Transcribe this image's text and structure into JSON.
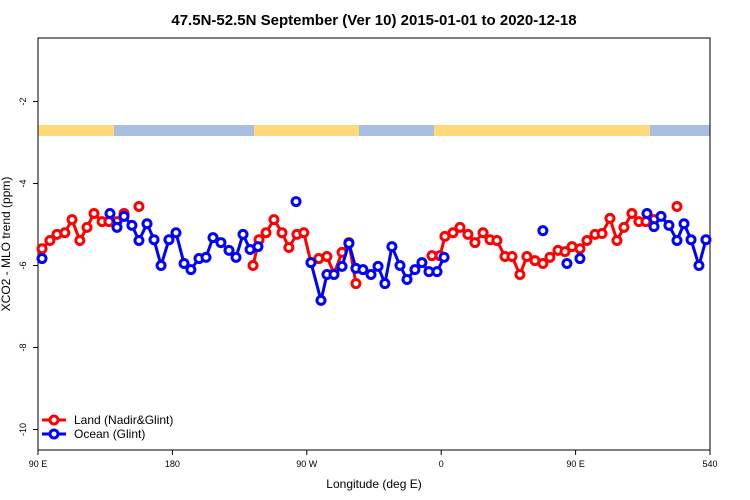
{
  "chart_data": {
    "type": "line",
    "title": "47.5N-52.5N September (Ver 10)   2015-01-01 to 2020-12-18",
    "x_label": "Longitude (deg E)",
    "y_label": "XCO2 - MLO trend (ppm)",
    "xlim": [
      90,
      540
    ],
    "ylim": [
      -10.5,
      -0.45
    ],
    "xticks": [
      {
        "value": 90,
        "label": "90 E"
      },
      180,
      {
        "value": 270,
        "label": "90 W"
      },
      {
        "value": 360,
        "label": "0"
      },
      {
        "value": 450,
        "label": "90 E"
      },
      540
    ],
    "yticks": [
      -2,
      -4,
      -6,
      -8,
      -10
    ],
    "legend": "bottom-left",
    "series": [
      {
        "name": "Land (Nadir&Glint)",
        "color": "#ff0000",
        "x": [
          92.7,
          98,
          102.7,
          108,
          112.8,
          118,
          122.8,
          127.5,
          132.9,
          137.5,
          142.9,
          147.6,
          null,
          157.6,
          null,
          234,
          238,
          242.7,
          248,
          253.4,
          258,
          263.4,
          268,
          272.8,
          278,
          283.5,
          288.2,
          293.6,
          298.2,
          302.9,
          null,
          353.8,
          359.2,
          362.5,
          367.9,
          372.6,
          377.9,
          382.6,
          388,
          392.7,
          397.3,
          402.7,
          407.4,
          412.7,
          417.4,
          422.8,
          428.1,
          432.8,
          438.2,
          442.9,
          447.6,
          452.9,
          457.6,
          463,
          467.7,
          473,
          477.7,
          482.4,
          487.7,
          492.4,
          497.1,
          502.5,
          null,
          517.9
        ],
        "values": [
          -5.59,
          -5.39,
          -5.24,
          -5.2,
          -4.88,
          -5.39,
          -5.07,
          -4.73,
          -4.93,
          -4.93,
          -4.93,
          -4.73,
          null,
          -4.56,
          null,
          -6.0,
          -5.37,
          -5.2,
          -4.88,
          -5.2,
          -5.56,
          -5.24,
          -5.2,
          -5.93,
          -5.83,
          -5.78,
          -6.2,
          -5.68,
          -5.44,
          -6.44,
          null,
          -5.76,
          -5.76,
          -5.29,
          -5.2,
          -5.07,
          -5.24,
          -5.44,
          -5.2,
          -5.37,
          -5.39,
          -5.78,
          -5.78,
          -6.22,
          -5.78,
          -5.88,
          -5.95,
          -5.8,
          -5.63,
          -5.66,
          -5.54,
          -5.59,
          -5.39,
          -5.24,
          -5.22,
          -4.85,
          -5.39,
          -5.07,
          -4.73,
          -4.93,
          -4.93,
          -4.88,
          null,
          -4.56
        ]
      },
      {
        "name": "Ocean (Glint)",
        "color": "#0000ff",
        "x": [
          92.7,
          null,
          138.2,
          142.9,
          147.6,
          152.9,
          157.6,
          163,
          167.7,
          172.4,
          177.7,
          182.4,
          187.8,
          192.4,
          197.8,
          202.5,
          207.2,
          212.5,
          217.9,
          222.6,
          227.3,
          232,
          237.3,
          null,
          262.8,
          null,
          272.8,
          279.5,
          283.5,
          288.2,
          293.6,
          298.2,
          302.9,
          307.6,
          313,
          317.7,
          322.3,
          327,
          332.4,
          337.1,
          342.4,
          347.1,
          351.8,
          357.2,
          361.9,
          null,
          428.1,
          null,
          444.2,
          null,
          452.9,
          null,
          497.8,
          502.5,
          507.2,
          512.5,
          517.9,
          522.6,
          527.3,
          532.6,
          537.3
        ],
        "values": [
          -5.83,
          null,
          -4.73,
          -5.07,
          -4.8,
          -5.02,
          -5.39,
          -4.98,
          -5.37,
          -6.0,
          -5.37,
          -5.2,
          -5.95,
          -6.1,
          -5.83,
          -5.8,
          -5.32,
          -5.44,
          -5.63,
          -5.8,
          -5.24,
          -5.61,
          -5.54,
          null,
          -4.44,
          null,
          -5.93,
          -6.85,
          -6.22,
          -6.22,
          -6.02,
          -5.46,
          -6.07,
          -6.1,
          -6.22,
          -6.02,
          -6.44,
          -5.54,
          -6.0,
          -6.34,
          -6.1,
          -5.93,
          -6.15,
          -6.15,
          -5.8,
          null,
          -5.15,
          null,
          -5.95,
          null,
          -5.83,
          null,
          -4.73,
          -5.05,
          -4.8,
          -5.02,
          -5.39,
          -4.98,
          -5.37,
          -6.0,
          -5.37
        ]
      }
    ]
  }
}
